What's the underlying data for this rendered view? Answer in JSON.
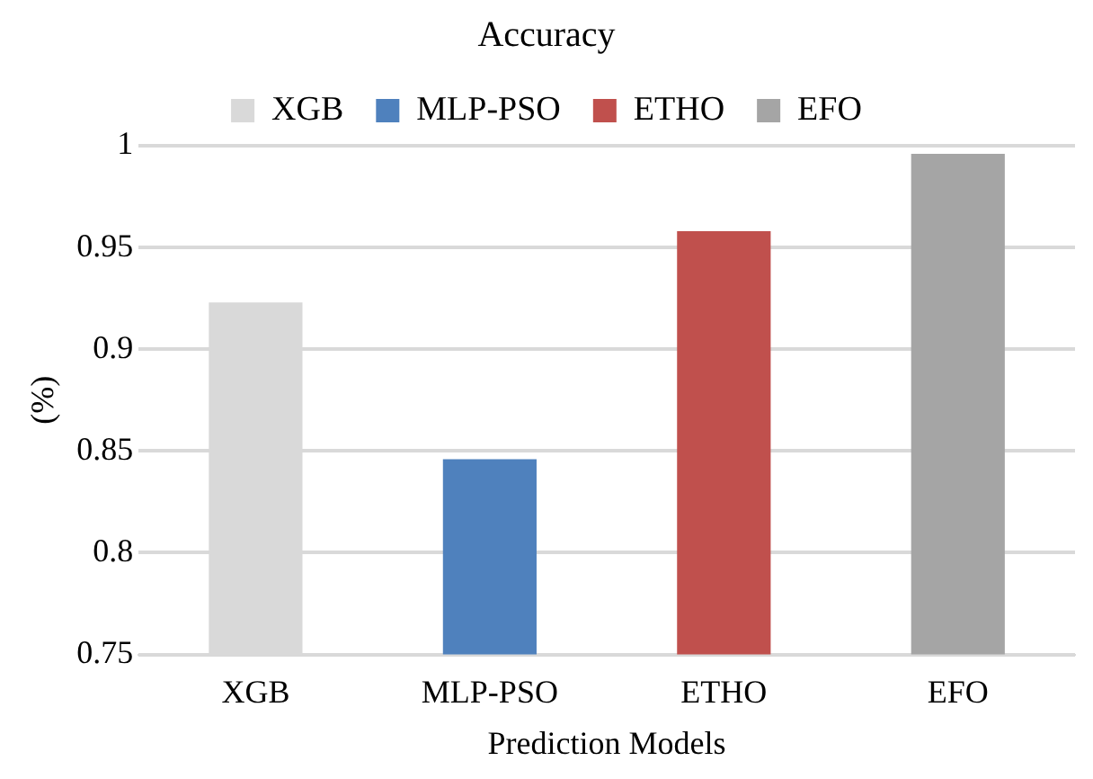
{
  "chart_data": {
    "type": "bar",
    "title": "Accuracy",
    "xlabel": "Prediction Models",
    "ylabel": "(%)",
    "categories": [
      "XGB",
      "MLP-PSO",
      "ETHO",
      "EFO"
    ],
    "series": [
      {
        "name": "XGB",
        "color": "#d9d9d9",
        "values": [
          0.923,
          null,
          null,
          null
        ]
      },
      {
        "name": "MLP-PSO",
        "color": "#4f81bd",
        "values": [
          null,
          0.846,
          null,
          null
        ]
      },
      {
        "name": "ETHO",
        "color": "#c0504d",
        "values": [
          null,
          null,
          0.958,
          null
        ]
      },
      {
        "name": "EFO",
        "color": "#a5a5a5",
        "values": [
          null,
          null,
          null,
          0.996
        ]
      }
    ],
    "ylim": [
      0.75,
      1
    ],
    "yticks": [
      0.75,
      0.8,
      0.85,
      0.9,
      0.95,
      1
    ],
    "grid": "y",
    "legend": "top"
  }
}
